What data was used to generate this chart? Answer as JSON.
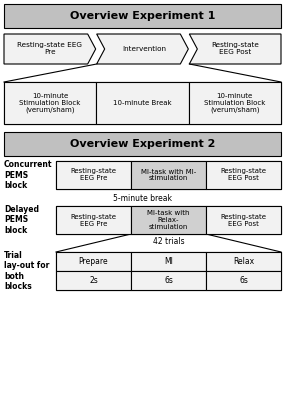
{
  "title1": "Overview Experiment 1",
  "title2": "Overview Experiment 2",
  "arrow_labels": [
    "Resting-state EEG\nPre",
    "Intervention",
    "Resting-state\nEEG Post"
  ],
  "stim_labels": [
    "10-minute\nStimulation Block\n(verum/sham)",
    "10-minute Break",
    "10-minute\nStimulation Block\n(verum/sham)"
  ],
  "concurrent_label": "Concurrent\nPEMS\nblock",
  "concurrent_boxes": [
    "Resting-state\nEEG Pre",
    "MI-task with MI-\nstimulation",
    "Resting-state\nEEG Post"
  ],
  "break_text": "5-minute break",
  "delayed_label": "Delayed\nPEMS\nblock",
  "delayed_boxes": [
    "Resting-state\nEEG Pre",
    "MI-task with\nRelax-\nstimulation",
    "Resting-state\nEEG Post"
  ],
  "trials_text": "42 trials",
  "trial_label": "Trial\nlay-out for\nboth\nblocks",
  "trial_row1": [
    "Prepare",
    "MI",
    "Relax"
  ],
  "trial_row2": [
    "2s",
    "6s",
    "6s"
  ],
  "header_color": "#c0c0c0",
  "box_light": "#f2f2f2",
  "box_mid": "#d0d0d0",
  "border_color": "#000000"
}
